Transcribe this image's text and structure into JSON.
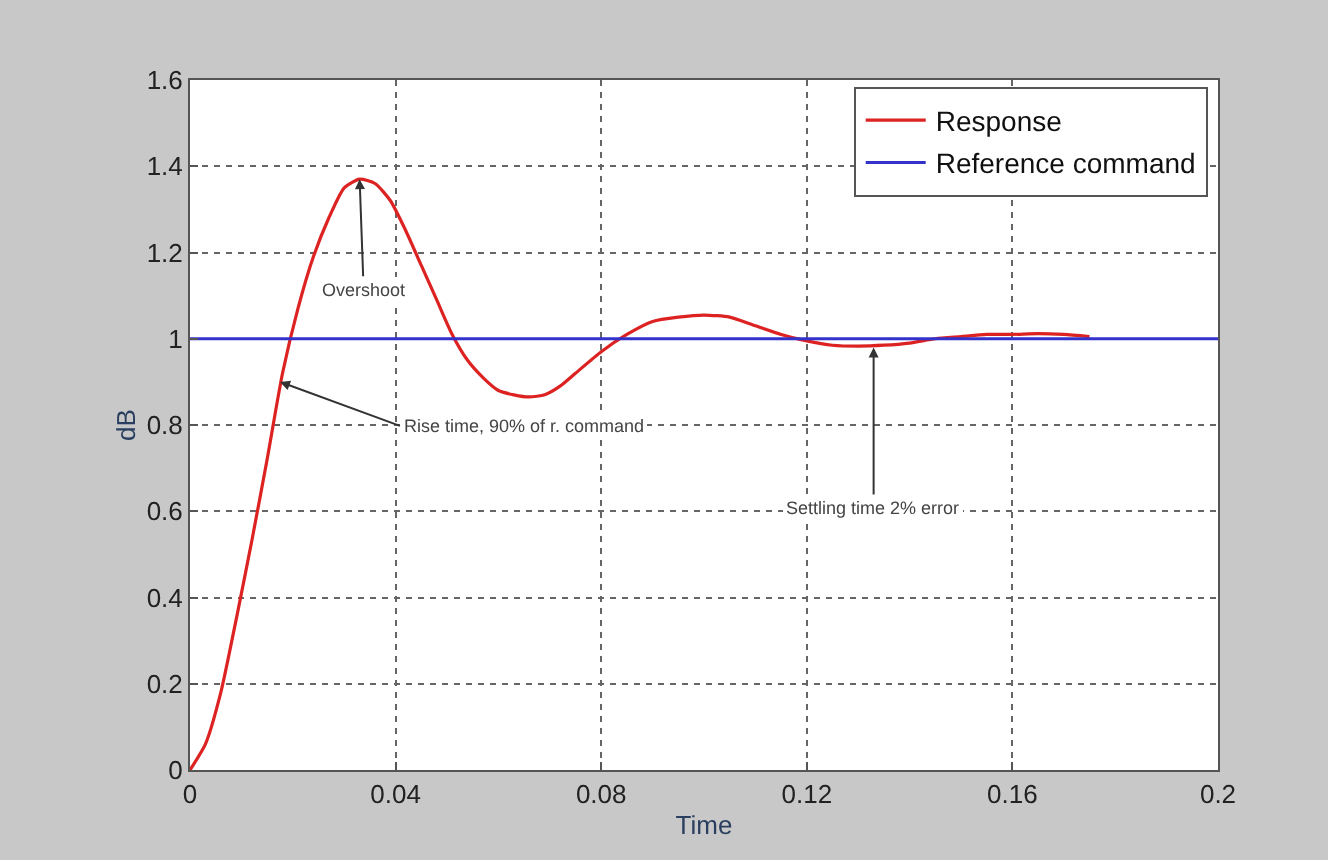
{
  "chart_data": {
    "type": "line",
    "xlabel": "Time",
    "ylabel": "dB",
    "xlim": [
      0,
      0.2
    ],
    "ylim": [
      0,
      1.6
    ],
    "xticks": [
      0,
      0.04,
      0.08,
      0.12,
      0.16,
      0.2
    ],
    "yticks": [
      0,
      0.2,
      0.4,
      0.6,
      0.8,
      1,
      1.2,
      1.4,
      1.6
    ],
    "grid": true,
    "legend": "top right",
    "line_style": "solid",
    "marker": "none",
    "series": [
      {
        "name": "Response",
        "color": "#dd2222",
        "x": [
          0,
          0.003,
          0.006,
          0.009,
          0.012,
          0.015,
          0.018,
          0.021,
          0.024,
          0.027,
          0.03,
          0.033,
          0.036,
          0.039,
          0.042,
          0.045,
          0.048,
          0.051,
          0.054,
          0.057,
          0.06,
          0.063,
          0.066,
          0.069,
          0.072,
          0.075,
          0.08,
          0.085,
          0.09,
          0.095,
          0.1,
          0.105,
          0.11,
          0.115,
          0.12,
          0.125,
          0.13,
          0.135,
          0.14,
          0.145,
          0.15,
          0.155,
          0.16,
          0.165,
          0.17,
          0.175
        ],
        "values": [
          0,
          0.06,
          0.18,
          0.35,
          0.53,
          0.72,
          0.92,
          1.07,
          1.19,
          1.28,
          1.35,
          1.37,
          1.36,
          1.32,
          1.25,
          1.17,
          1.09,
          1.01,
          0.95,
          0.91,
          0.88,
          0.87,
          0.865,
          0.87,
          0.89,
          0.92,
          0.97,
          1.01,
          1.04,
          1.05,
          1.055,
          1.05,
          1.03,
          1.01,
          0.995,
          0.985,
          0.983,
          0.985,
          0.99,
          1.0,
          1.005,
          1.01,
          1.01,
          1.012,
          1.01,
          1.005
        ]
      },
      {
        "name": "Reference command",
        "color": "#3333cc",
        "x": [
          0,
          0.2
        ],
        "values": [
          1,
          1
        ]
      }
    ],
    "annotations": [
      {
        "text": "Overshoot",
        "x": 0.033,
        "y": 1.37
      },
      {
        "text": "Rise time, 90% of r. command",
        "x": 0.0175,
        "y": 0.9
      },
      {
        "text": "Settling time 2% error",
        "x": 0.133,
        "y": 0.98
      }
    ]
  }
}
